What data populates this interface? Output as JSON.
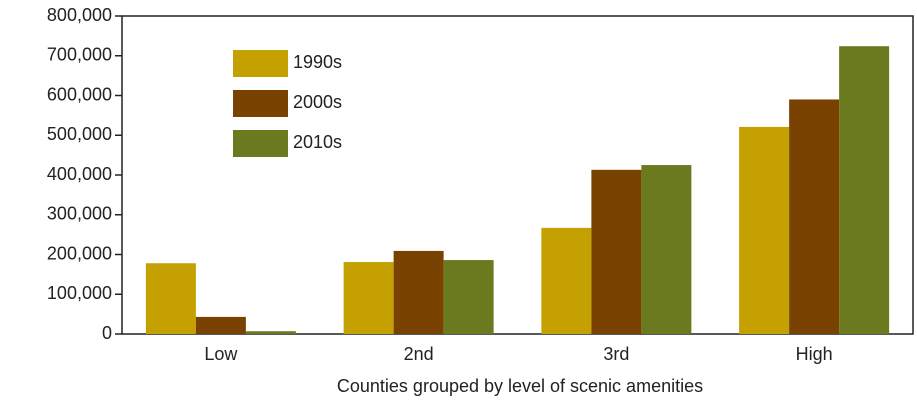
{
  "chart_data": {
    "type": "bar",
    "x_label": "Counties grouped by level of scenic amenities",
    "categories": [
      "Low",
      "2nd",
      "3rd",
      "High"
    ],
    "series": [
      {
        "name": "1990s",
        "color": "#c4a000",
        "values": [
          178000,
          181000,
          267000,
          521000
        ]
      },
      {
        "name": "2000s",
        "color": "#7a4200",
        "values": [
          43000,
          209000,
          413000,
          590000
        ]
      },
      {
        "name": "2010s",
        "color": "#6b7a1e",
        "values": [
          7000,
          186000,
          425000,
          724000
        ]
      }
    ],
    "ylim": [
      0,
      800000
    ],
    "yticks": [
      0,
      {
        "value": 100000,
        "label": "100,000"
      },
      {
        "value": 200000,
        "label": "200,000"
      },
      {
        "value": 300000,
        "label": "300,000"
      },
      {
        "value": 400000,
        "label": "400,000"
      },
      {
        "value": 500000,
        "label": "500,000"
      },
      {
        "value": 600000,
        "label": "600,000"
      },
      {
        "value": 700000,
        "label": "700,000"
      },
      {
        "value": 800000,
        "label": "800,000"
      }
    ],
    "legend": "upper left",
    "grid": false
  }
}
